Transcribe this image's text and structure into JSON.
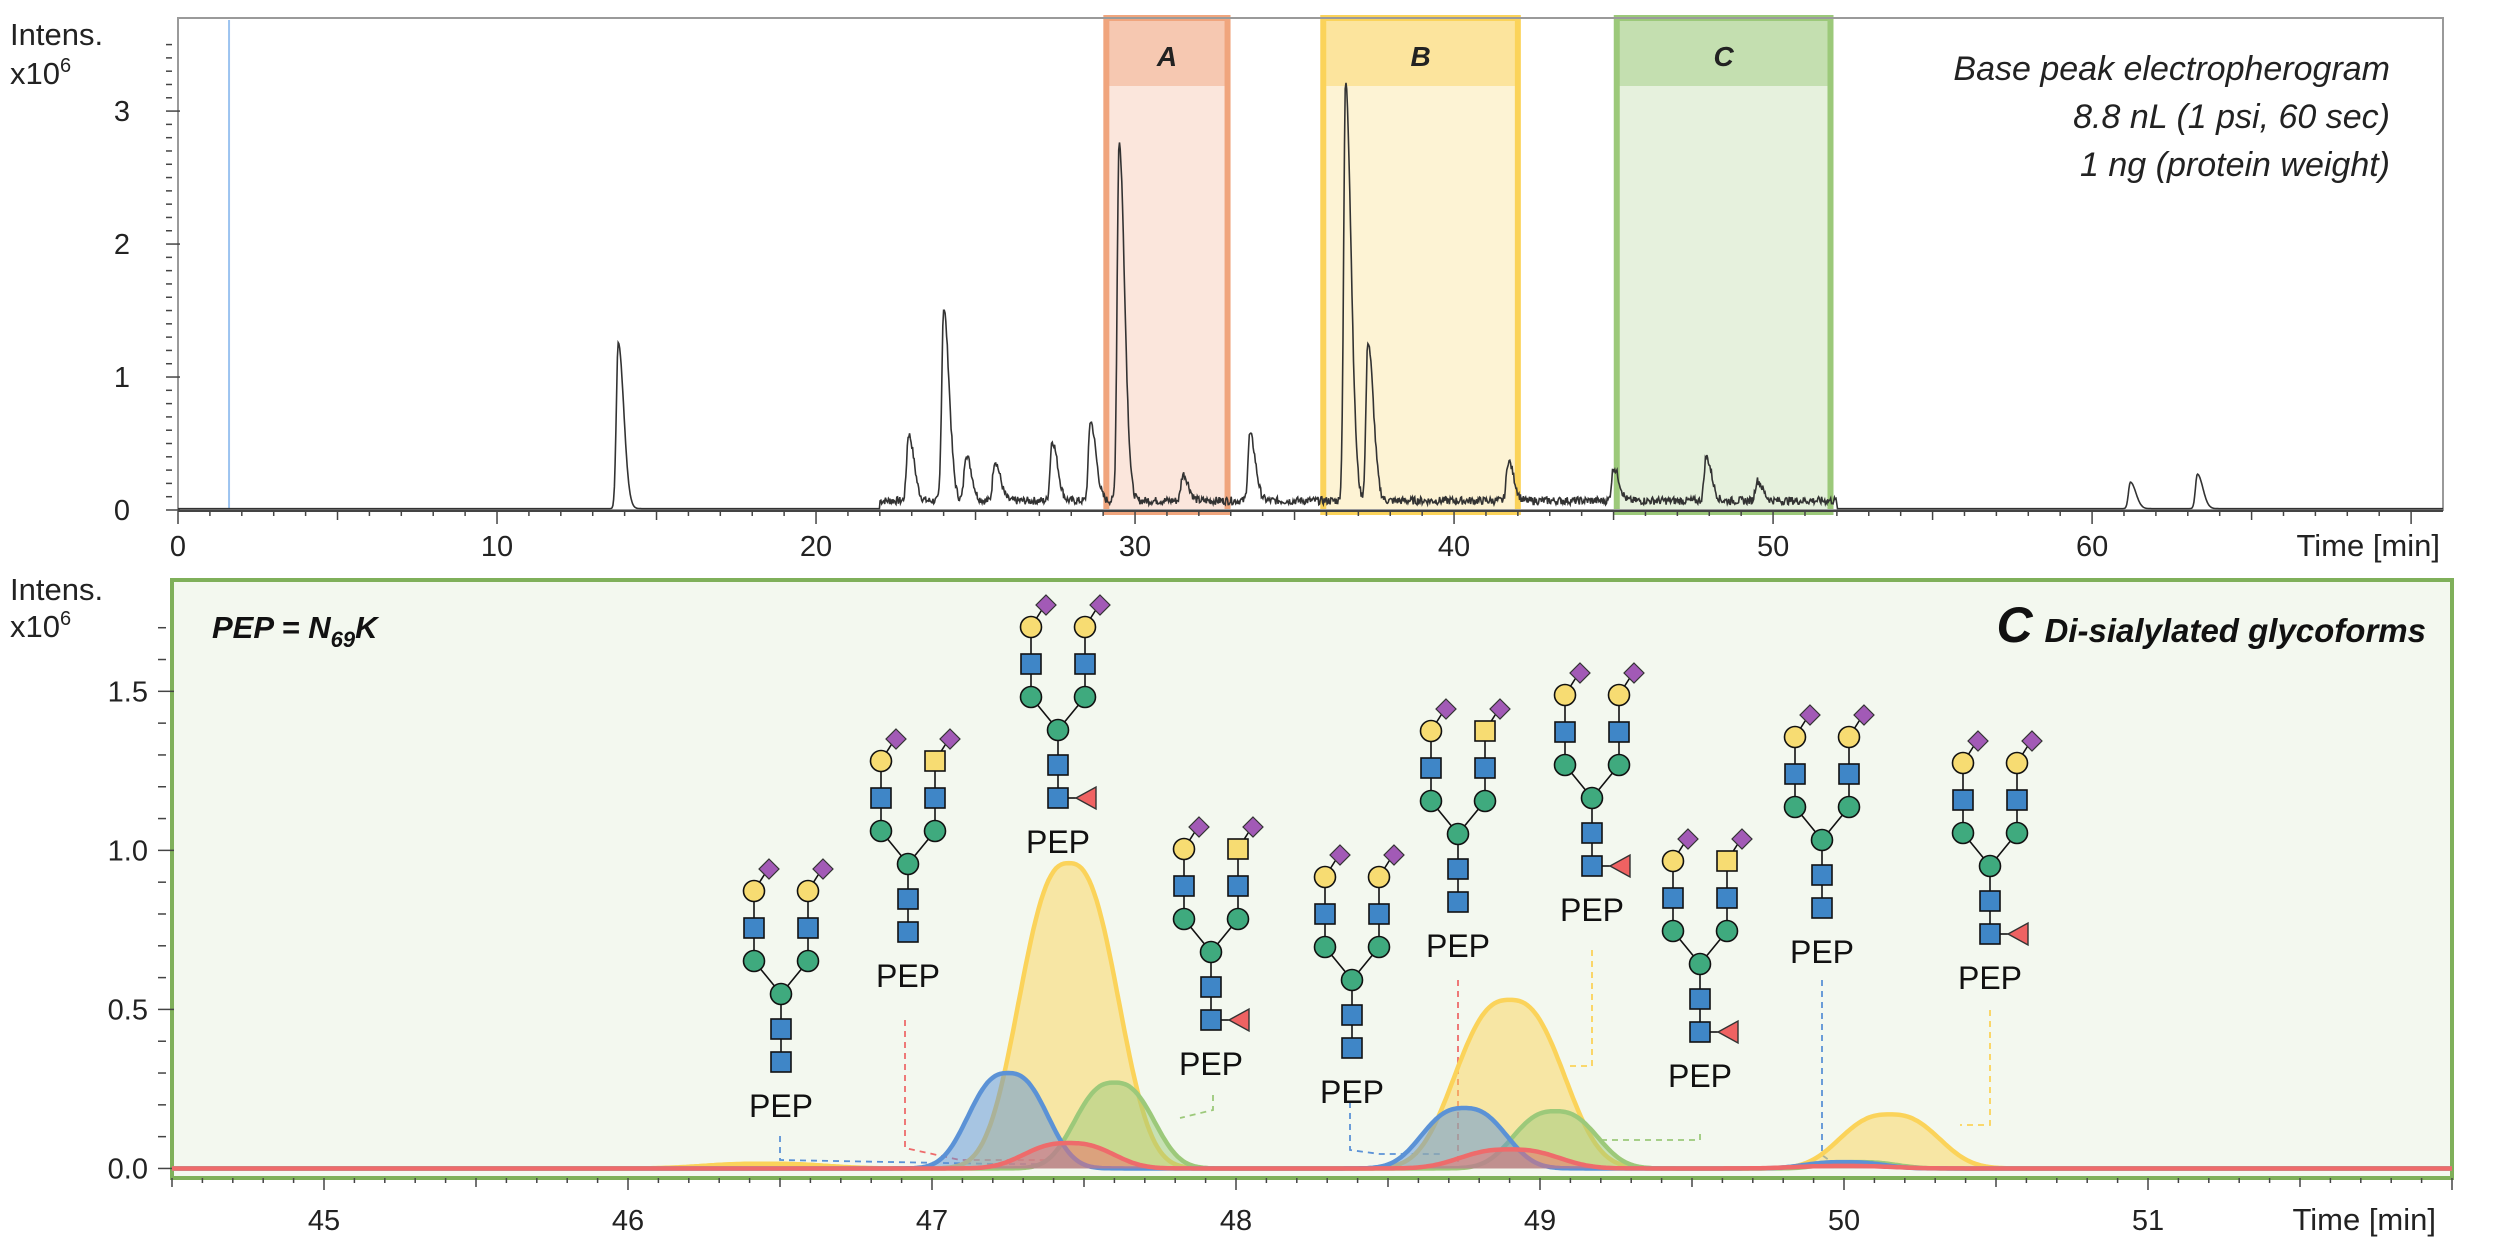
{
  "chart_data": [
    {
      "type": "line",
      "panel": "top",
      "y_axis_label_line1": "Intens.",
      "y_axis_label_line2": "x10",
      "y_axis_label_exp": "6",
      "x_axis_label": "Time [min]",
      "xlim": [
        0,
        71
      ],
      "ylim": [
        0,
        3.7
      ],
      "x_ticks": [
        "0",
        "10",
        "20",
        "30",
        "40",
        "50",
        "60"
      ],
      "y_ticks": [
        "0",
        "1",
        "2",
        "3"
      ],
      "notes": [
        "Base peak electropherogram",
        "8.8 nL (1 psi, 60 sec)",
        "1 ng (protein weight)"
      ],
      "regions": [
        {
          "label": "A",
          "x_start": 29.1,
          "x_end": 32.9,
          "color": "#f0a57d",
          "fill": "#fbe6dc"
        },
        {
          "label": "B",
          "x_start": 35.9,
          "x_end": 42.0,
          "color": "#fbd35a",
          "fill": "#fdf3d4"
        },
        {
          "label": "C",
          "x_start": 45.1,
          "x_end": 51.8,
          "color": "#9cc97a",
          "fill": "#e6f1dd"
        }
      ],
      "peaks": [
        {
          "x": 13.8,
          "y": 1.25
        },
        {
          "x": 22.9,
          "y": 0.5
        },
        {
          "x": 24.0,
          "y": 1.45
        },
        {
          "x": 24.7,
          "y": 0.35
        },
        {
          "x": 25.6,
          "y": 0.3
        },
        {
          "x": 27.4,
          "y": 0.45
        },
        {
          "x": 28.6,
          "y": 0.6
        },
        {
          "x": 29.5,
          "y": 2.7
        },
        {
          "x": 31.5,
          "y": 0.2
        },
        {
          "x": 33.6,
          "y": 0.5
        },
        {
          "x": 36.6,
          "y": 3.15
        },
        {
          "x": 37.3,
          "y": 1.2
        },
        {
          "x": 41.7,
          "y": 0.3
        },
        {
          "x": 45.0,
          "y": 0.25
        },
        {
          "x": 47.9,
          "y": 0.33
        },
        {
          "x": 49.5,
          "y": 0.15
        },
        {
          "x": 61.2,
          "y": 0.2
        },
        {
          "x": 63.3,
          "y": 0.26
        }
      ],
      "baseline_marker_x": 1.6
    },
    {
      "type": "area",
      "panel": "bottom",
      "y_axis_label_line1": "Intens.",
      "y_axis_label_line2": "x10",
      "y_axis_label_exp": "6",
      "x_axis_label": "Time [min]",
      "xlim": [
        44.5,
        52.0
      ],
      "ylim": [
        -0.03,
        1.85
      ],
      "x_ticks": [
        "45",
        "46",
        "47",
        "48",
        "49",
        "50",
        "51"
      ],
      "y_ticks": [
        "0.0",
        "0.5",
        "1.0",
        "1.5"
      ],
      "title_letter": "C",
      "title_text": "Di-sialylated glycoforms",
      "pep_def_prefix": "PEP = N",
      "pep_def_sub": "69",
      "pep_def_suffix": "K",
      "pep_label": "PEP",
      "series_colors": {
        "yellow": "#fbd35a",
        "green": "#9cc97a",
        "blue": "#5b92d6",
        "red": "#ee6b6b"
      },
      "series": [
        {
          "color": "yellow",
          "peaks": [
            {
              "center": 46.45,
              "height": 0.015,
              "width": 0.25
            },
            {
              "center": 47.45,
              "height": 0.96,
              "width": 0.2
            },
            {
              "center": 48.9,
              "height": 0.53,
              "width": 0.22
            },
            {
              "center": 50.15,
              "height": 0.17,
              "width": 0.2
            }
          ]
        },
        {
          "color": "green",
          "peaks": [
            {
              "center": 47.6,
              "height": 0.27,
              "width": 0.16
            },
            {
              "center": 49.05,
              "height": 0.18,
              "width": 0.17
            },
            {
              "center": 50.05,
              "height": 0.02,
              "width": 0.15
            }
          ]
        },
        {
          "color": "blue",
          "peaks": [
            {
              "center": 47.25,
              "height": 0.3,
              "width": 0.16
            },
            {
              "center": 48.75,
              "height": 0.19,
              "width": 0.17
            },
            {
              "center": 50.0,
              "height": 0.02,
              "width": 0.16
            }
          ]
        },
        {
          "color": "red",
          "peaks": [
            {
              "center": 47.45,
              "height": 0.08,
              "width": 0.18
            },
            {
              "center": 48.9,
              "height": 0.06,
              "width": 0.2
            },
            {
              "center": 50.0,
              "height": 0.008,
              "width": 0.2
            }
          ]
        }
      ]
    }
  ]
}
